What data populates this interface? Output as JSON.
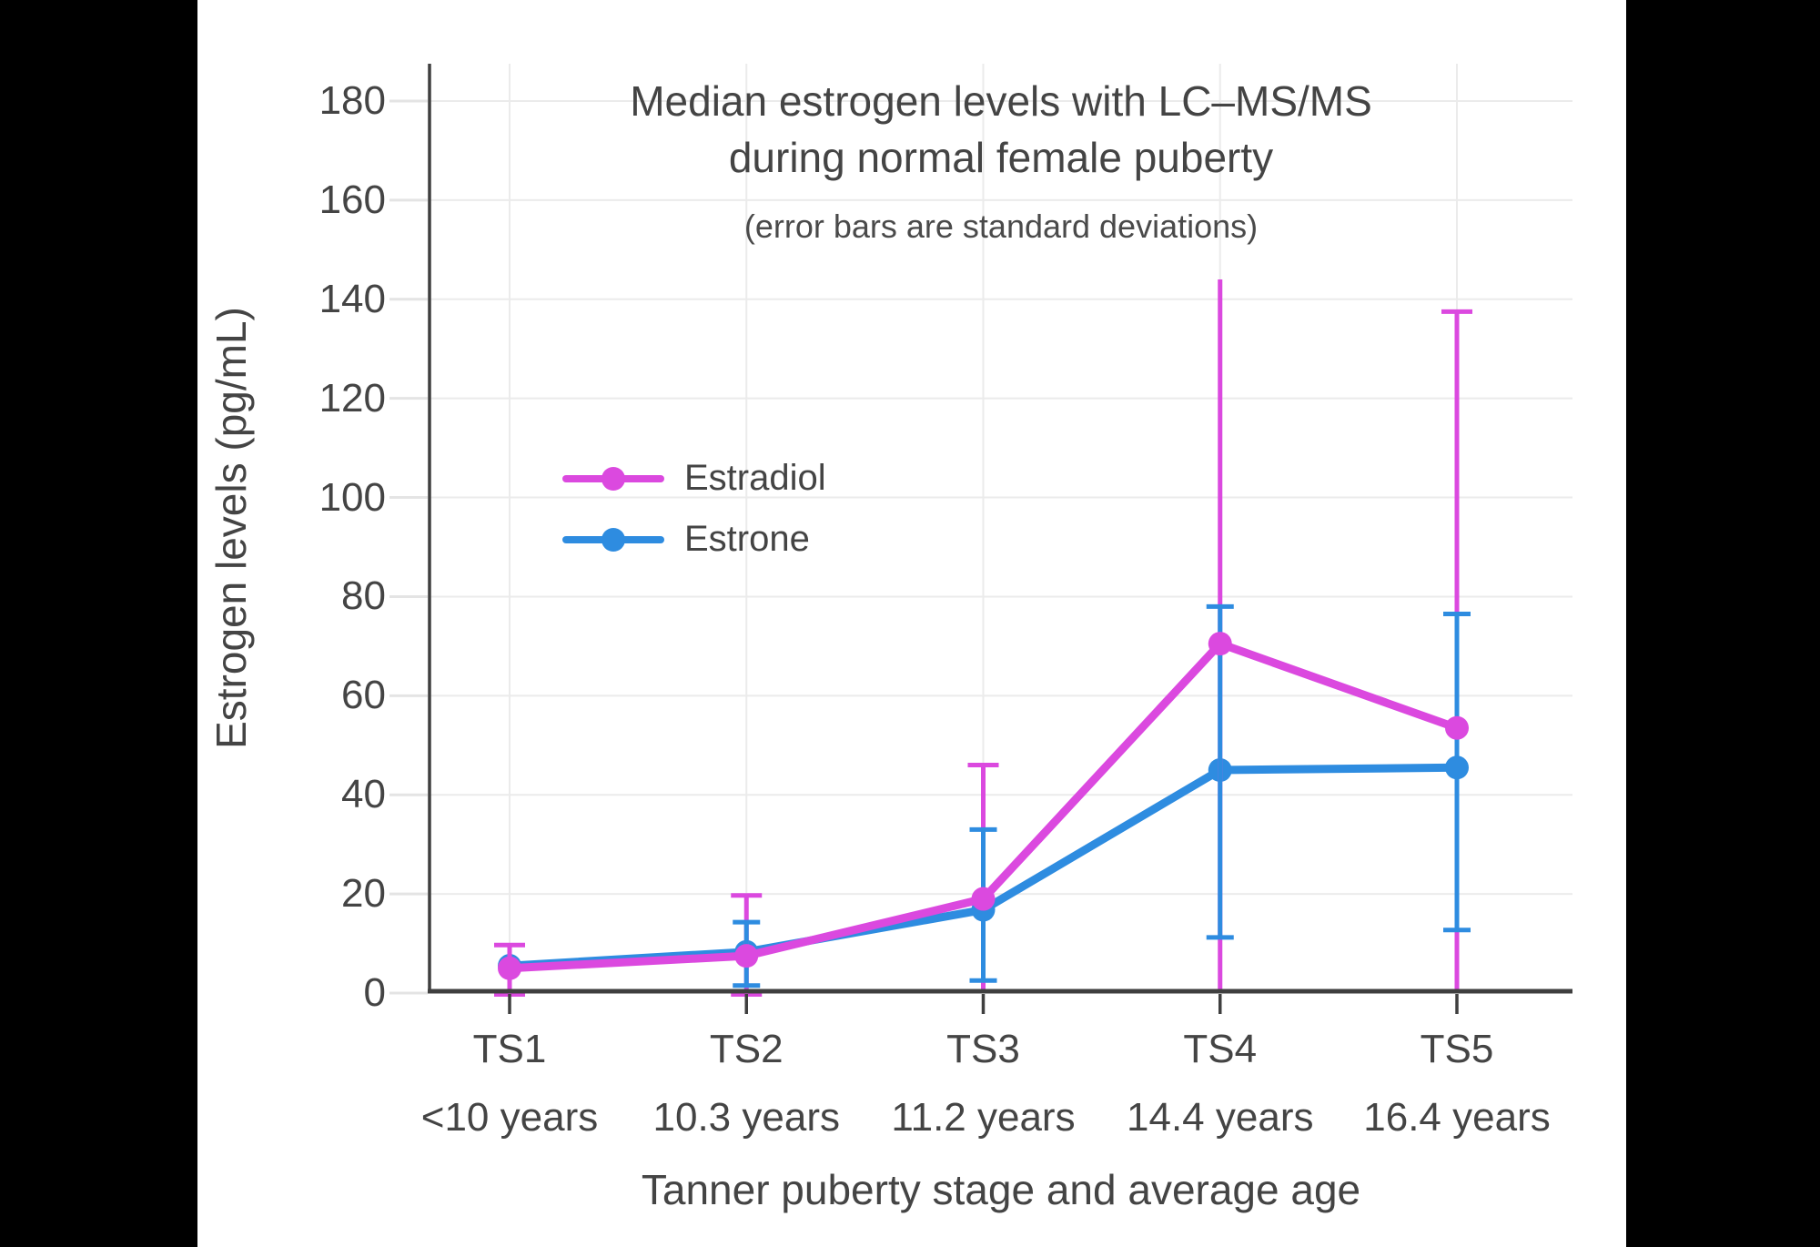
{
  "page": {
    "background": "#ffffff",
    "pillarbox_color": "#000000"
  },
  "titles": {
    "title_line1": "Median estrogen levels with LC–MS/MS",
    "title_line2": "during normal female puberty",
    "subtitle": "(error bars are standard deviations)"
  },
  "axes": {
    "y_title": "Estrogen levels (pg/mL)",
    "x_title": "Tanner puberty stage and average age"
  },
  "legend": {
    "items": [
      {
        "label": "Estradiol",
        "color": "#DB49DF"
      },
      {
        "label": "Estrone",
        "color": "#2E8CE0"
      }
    ]
  },
  "chart_data": {
    "type": "line",
    "title": "Median estrogen levels with LC–MS/MS during normal female puberty",
    "subtitle": "(error bars are standard deviations)",
    "xlabel": "Tanner puberty stage and average age",
    "ylabel": "Estrogen levels (pg/mL)",
    "categories": [
      "TS1",
      "TS2",
      "TS3",
      "TS4",
      "TS5"
    ],
    "category_ages": [
      "<10 years",
      "10.3 years",
      "11.2 years",
      "14.4 years",
      "16.4 years"
    ],
    "y_ticks": [
      0,
      20,
      40,
      60,
      80,
      100,
      120,
      140,
      160,
      180
    ],
    "ylim": [
      0,
      190
    ],
    "grid": true,
    "legend_position": "middle-left",
    "error_note": "error bars are standard deviations; lower estradiol error bars extend to 0 (clipped at axis)",
    "series": [
      {
        "name": "Estradiol",
        "color": "#DB49DF",
        "values": [
          5,
          7.5,
          19,
          70.5,
          53.5
        ],
        "error_top": [
          9.7,
          19.7,
          46,
          144,
          137.5
        ],
        "error_bottom": [
          0,
          0,
          0,
          0,
          0
        ],
        "cap_top": [
          true,
          true,
          true,
          false,
          true
        ],
        "cap_bottom": [
          true,
          true,
          false,
          false,
          false
        ]
      },
      {
        "name": "Estrone",
        "color": "#2E8CE0",
        "values": [
          5.5,
          8.3,
          16.8,
          45,
          45.5
        ],
        "error_top": [
          null,
          14.3,
          33,
          78,
          76.5
        ],
        "error_bottom": [
          null,
          1.8,
          2.8,
          11.5,
          13
        ],
        "cap_top": [
          false,
          true,
          true,
          true,
          true
        ],
        "cap_bottom": [
          false,
          true,
          true,
          true,
          true
        ]
      }
    ]
  },
  "colors": {
    "grid": "#EBEBEB",
    "y_tick": "#E4E4E4",
    "axis": "#3F3F3F",
    "text": "#444444"
  }
}
